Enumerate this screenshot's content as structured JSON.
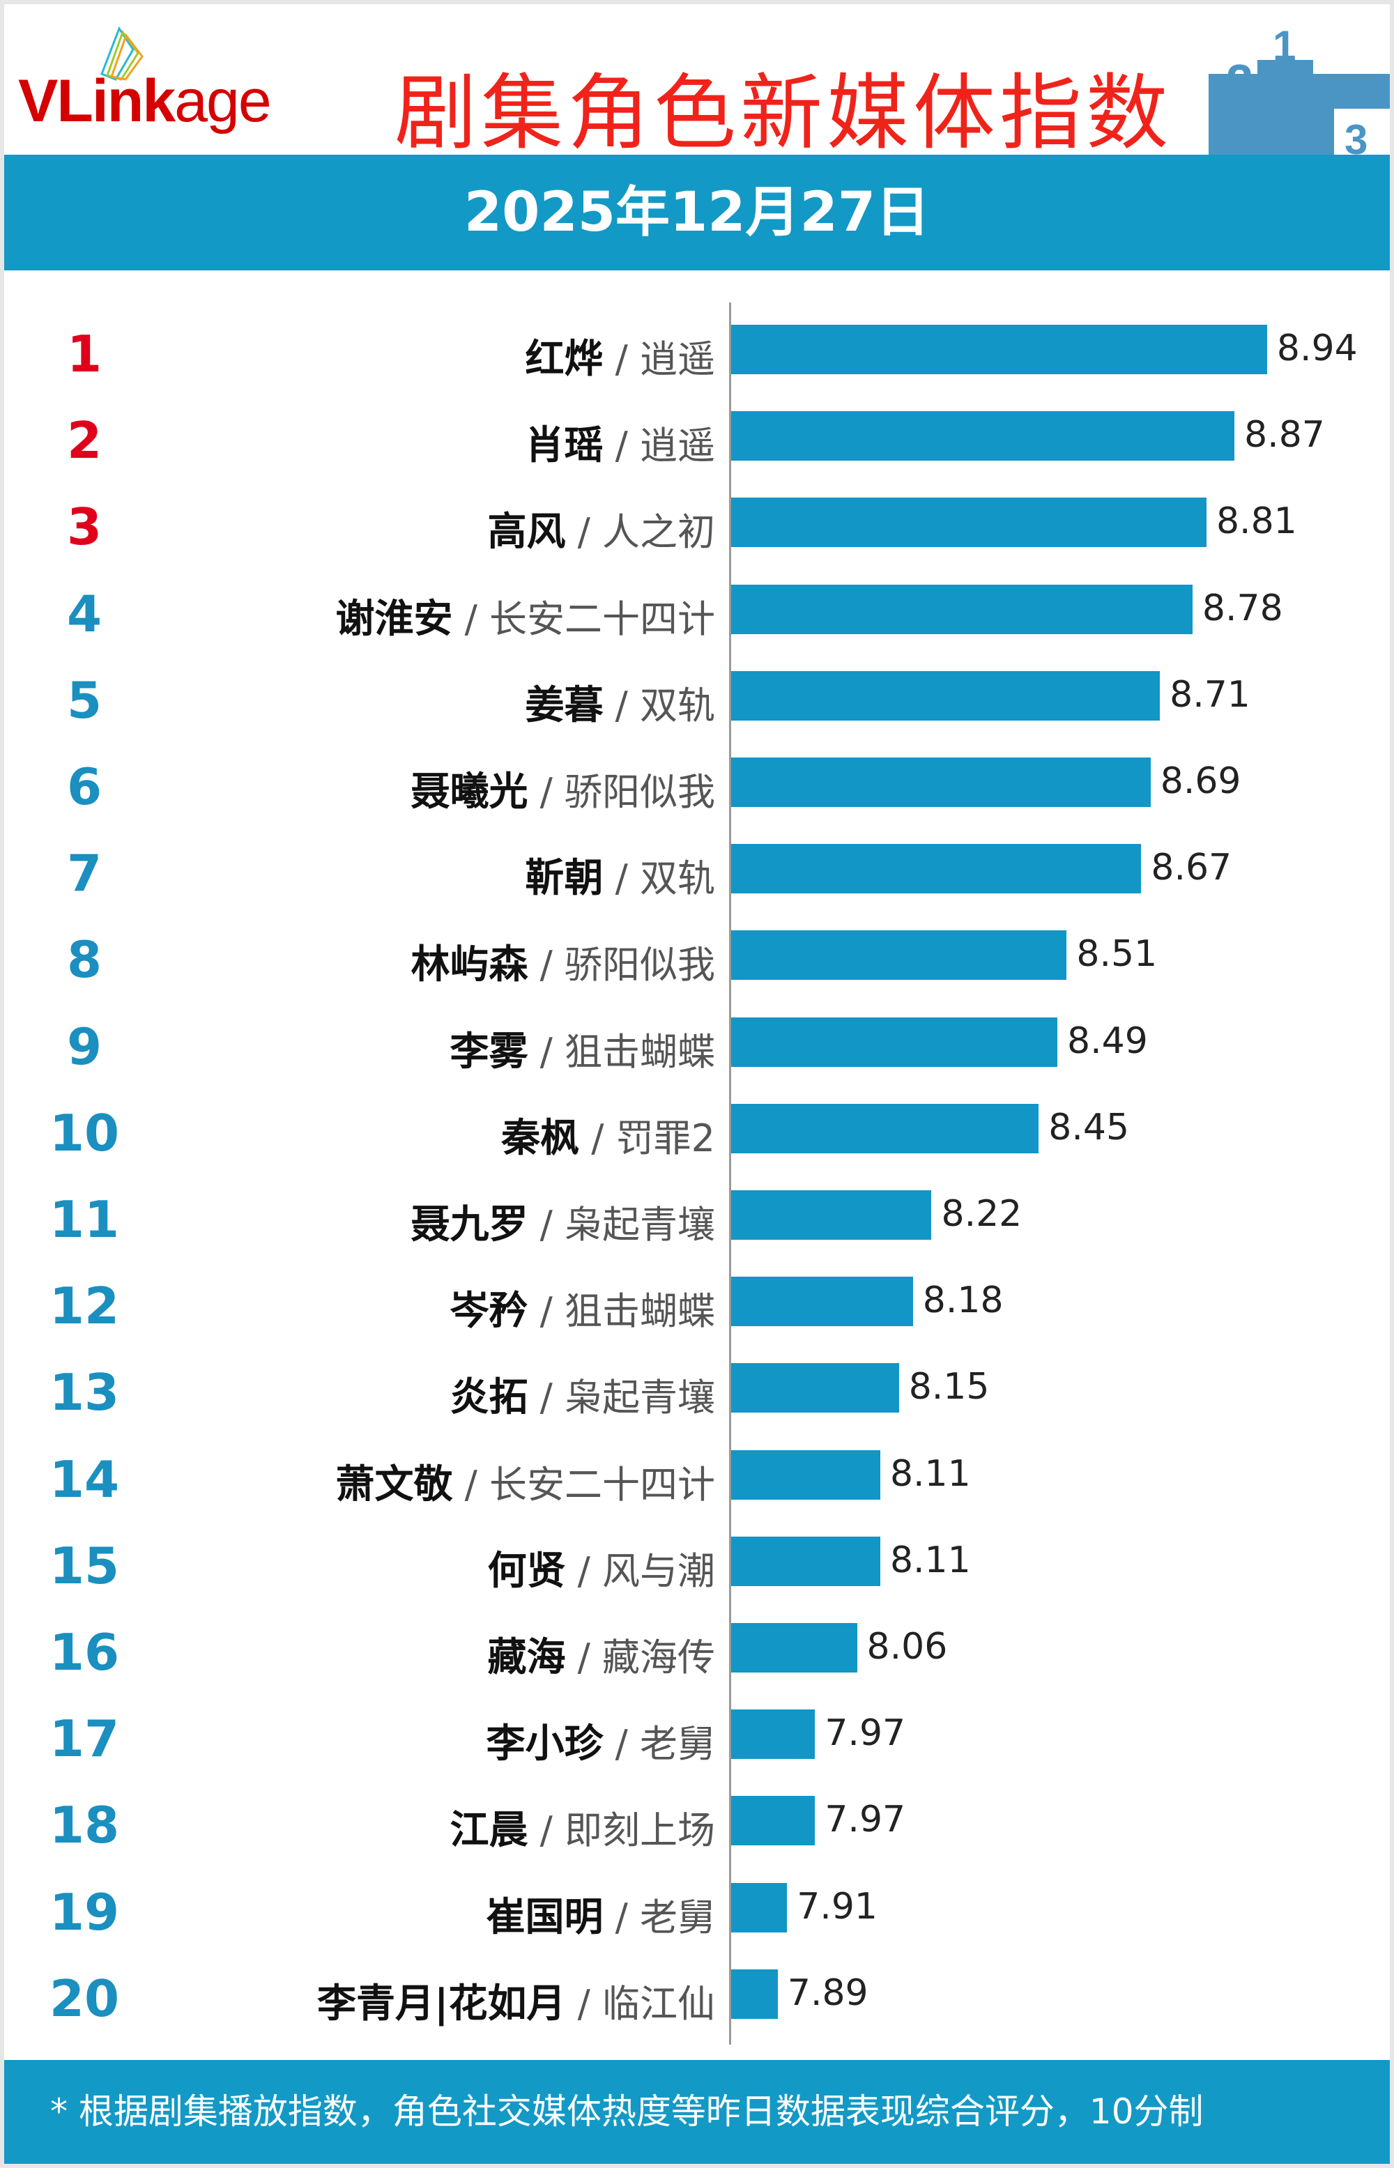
{
  "header": {
    "logo": "VLinkage",
    "title": "剧集角色新媒体指数",
    "date": "2025年12月27日"
  },
  "colors": {
    "top3_rank": "#e0001b",
    "rank": "#1a8fc0",
    "bar": "#1196c6",
    "band": "#1399c6",
    "title": "#f0231b"
  },
  "chart_data": {
    "type": "bar",
    "orientation": "horizontal",
    "grid": false,
    "categories": [
      {
        "rank": "1",
        "name": "红烨",
        "show": "逍遥"
      },
      {
        "rank": "2",
        "name": "肖瑶",
        "show": "逍遥"
      },
      {
        "rank": "3",
        "name": "高风",
        "show": "人之初"
      },
      {
        "rank": "4",
        "name": "谢淮安",
        "show": "长安二十四计"
      },
      {
        "rank": "5",
        "name": "姜暮",
        "show": "双轨"
      },
      {
        "rank": "6",
        "name": "聂曦光",
        "show": "骄阳似我"
      },
      {
        "rank": "7",
        "name": "靳朝",
        "show": "双轨"
      },
      {
        "rank": "8",
        "name": "林屿森",
        "show": "骄阳似我"
      },
      {
        "rank": "9",
        "name": "李雾",
        "show": "狙击蝴蝶"
      },
      {
        "rank": "10",
        "name": "秦枫",
        "show": "罚罪2"
      },
      {
        "rank": "11",
        "name": "聂九罗",
        "show": "枭起青壤"
      },
      {
        "rank": "12",
        "name": "岑矜",
        "show": "狙击蝴蝶"
      },
      {
        "rank": "13",
        "name": "炎拓",
        "show": "枭起青壤"
      },
      {
        "rank": "14",
        "name": "萧文敬",
        "show": "长安二十四计"
      },
      {
        "rank": "15",
        "name": "何贤",
        "show": "风与潮"
      },
      {
        "rank": "16",
        "name": "藏海",
        "show": "藏海传"
      },
      {
        "rank": "17",
        "name": "李小珍",
        "show": "老舅"
      },
      {
        "rank": "18",
        "name": "江晨",
        "show": "即刻上场"
      },
      {
        "rank": "19",
        "name": "崔国明",
        "show": "老舅"
      },
      {
        "rank": "20",
        "name": "李青月|花如月",
        "show": "临江仙"
      }
    ],
    "values": [
      "8.94",
      "8.87",
      "8.81",
      "8.78",
      "8.71",
      "8.69",
      "8.67",
      "8.51",
      "8.49",
      "8.45",
      "8.22",
      "8.18",
      "8.15",
      "8.11",
      "8.11",
      "8.06",
      "7.97",
      "7.97",
      "7.91",
      "7.89"
    ],
    "xlim": [
      7.79,
      9.0
    ]
  },
  "footer": {
    "note": "* 根据剧集播放指数，角色社交媒体热度等昨日数据表现综合评分，10分制"
  }
}
